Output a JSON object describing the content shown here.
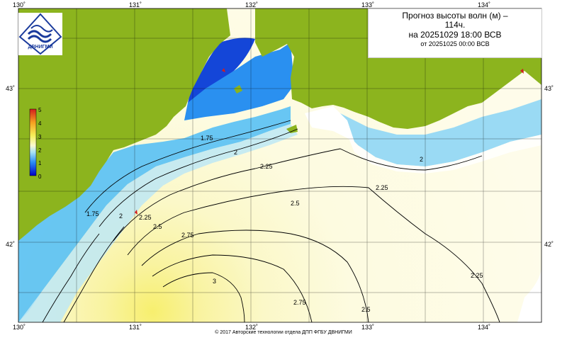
{
  "title": {
    "line1": "Прогноз высоты волн (м) –",
    "line2": "114ч.",
    "line3": "на 20251029 18:00 ВСВ",
    "line4": "от 20251025 00:00 ВСВ"
  },
  "logo": {
    "text": "ДВНИГМИ"
  },
  "axes": {
    "lon_top": [
      "130˚",
      "131˚",
      "132˚",
      "133˚",
      "134˚"
    ],
    "lon_bottom": [
      "130˚",
      "131˚",
      "132˚",
      "133˚",
      "134˚"
    ],
    "lat_left": [
      "43˚",
      "42˚"
    ],
    "lat_right": [
      "43˚",
      "42˚"
    ]
  },
  "color_scale": {
    "ticks": [
      "5",
      "4",
      "3",
      "2",
      "1",
      "0"
    ],
    "colors": [
      "#0000c8",
      "#1e6ef0",
      "#3cb4f5",
      "#bfe9f5",
      "#fafad2",
      "#f5f05a",
      "#f5a020",
      "#d21e1e"
    ]
  },
  "contour_labels": [
    "1.75",
    "2",
    "2.25",
    "2.5",
    "2.75",
    "3",
    "1.75",
    "2",
    "2.25",
    "2.5",
    "2.75",
    "2.5",
    "2.25",
    "2.25",
    "2"
  ],
  "footer": "© 2017 Авторские технологии отдела ДПП ФГБУ ДВНИГМИ",
  "colors": {
    "land": "#8cb41e",
    "grid": "#000000"
  }
}
